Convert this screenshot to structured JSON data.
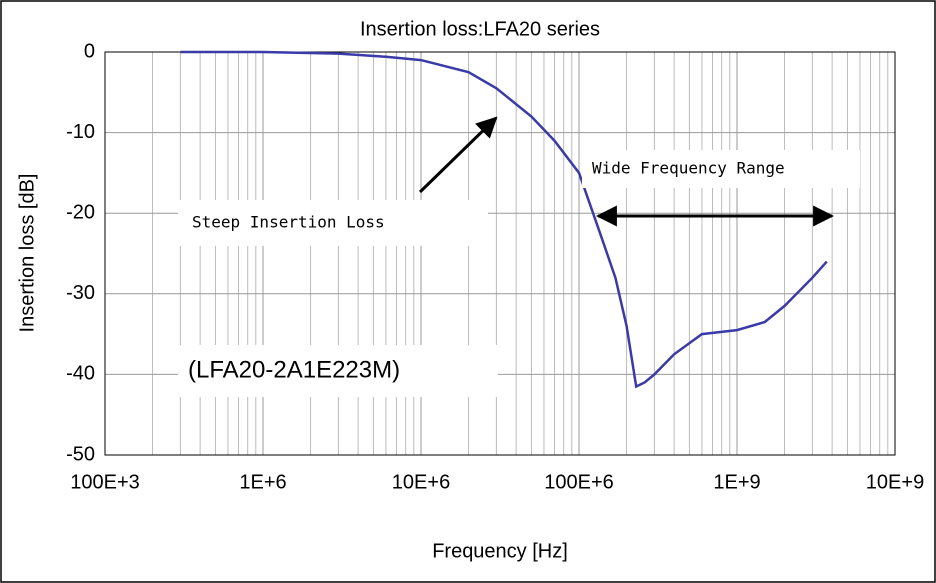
{
  "chart_data": {
    "type": "line",
    "title": "Insertion loss:LFA20 series",
    "x_label": "Frequency  [Hz]",
    "y_label": "Insertion loss [dB]",
    "xscale": "log",
    "x": [
      300000,
      1000000,
      3000000,
      6000000,
      10000000,
      20000000,
      30000000,
      50000000,
      70000000,
      100000000,
      136000000,
      170000000,
      200000000,
      230000000,
      260000000,
      300000000,
      400000000,
      600000000,
      1000000000,
      1500000000,
      2000000000,
      3000000000,
      3700000000
    ],
    "values": [
      0,
      0,
      -0.2,
      -0.6,
      -1,
      -2.5,
      -4.5,
      -8,
      -11,
      -15,
      -22.5,
      -28,
      -34,
      -41.5,
      -41,
      -40,
      -37.5,
      -35,
      -34.5,
      -33.5,
      -31.5,
      -28,
      -26
    ],
    "color": "#3a3aa8",
    "xlim": [
      100000,
      10000000000
    ],
    "xticks": [
      {
        "value": 100000,
        "label": "100E+3"
      },
      {
        "value": 1000000,
        "label": "1E+6"
      },
      {
        "value": 10000000,
        "label": "10E+6"
      },
      {
        "value": 100000000,
        "label": "100E+6"
      },
      {
        "value": 1000000000,
        "label": "1E+9"
      },
      {
        "value": 10000000000,
        "label": "10E+9"
      }
    ],
    "ylim": [
      -50,
      0
    ],
    "yticks": [
      -50,
      -40,
      -30,
      -20,
      -10,
      0
    ],
    "grid": true,
    "annotations": [
      "Steep Insertion Loss",
      "Wide Frequency Range",
      "(LFA20-2A1E223M)"
    ]
  }
}
